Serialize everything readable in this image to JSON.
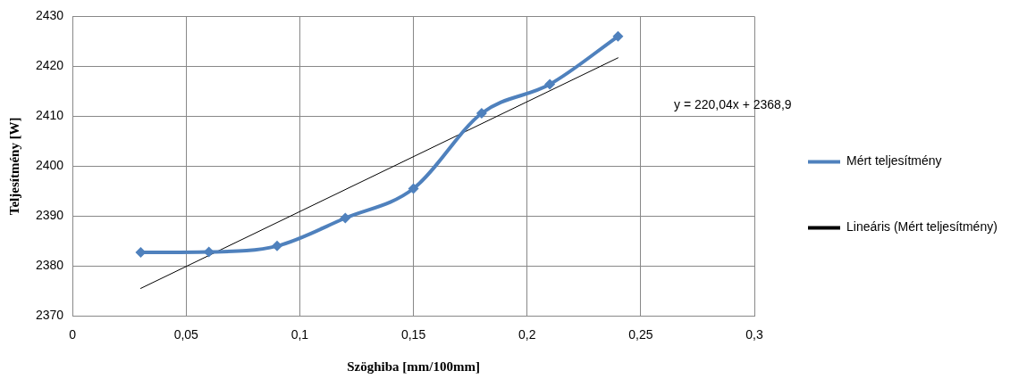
{
  "chart_data": {
    "type": "line",
    "xlabel": "Szöghiba [mm/100mm]",
    "ylabel": "Teljesítmény [W]",
    "xlim": [
      0,
      0.3
    ],
    "xticks": [
      0,
      {
        "value": 0.05,
        "label": "0,05"
      },
      {
        "value": 0.1,
        "label": "0,1"
      },
      {
        "value": 0.15,
        "label": "0,15"
      },
      {
        "value": 0.2,
        "label": "0,2"
      },
      {
        "value": 0.25,
        "label": "0,25"
      },
      {
        "value": 0.3,
        "label": "0,3"
      }
    ],
    "ylim": [
      2370,
      2430
    ],
    "yticks": [
      2370,
      2380,
      2390,
      2400,
      2410,
      2420,
      2430
    ],
    "series": [
      {
        "name": "Mért teljesítmény",
        "color": "#4f81bd",
        "marker": "diamond",
        "x": [
          0.03,
          0.06,
          0.09,
          0.12,
          0.15,
          0.18,
          0.21,
          0.24
        ],
        "values": [
          2382.7,
          2382.8,
          2384.0,
          2389.6,
          2395.5,
          2410.6,
          2416.4,
          2426.0
        ]
      },
      {
        "name": "Lineáris (Mért teljesítmény)",
        "color": "#000000",
        "marker": "none",
        "x": [
          0.03,
          0.24
        ],
        "values": [
          2375.5,
          2421.7
        ]
      }
    ],
    "annotations": [
      "y = 220,04x + 2368,9"
    ],
    "grid": true,
    "legend": "right"
  }
}
